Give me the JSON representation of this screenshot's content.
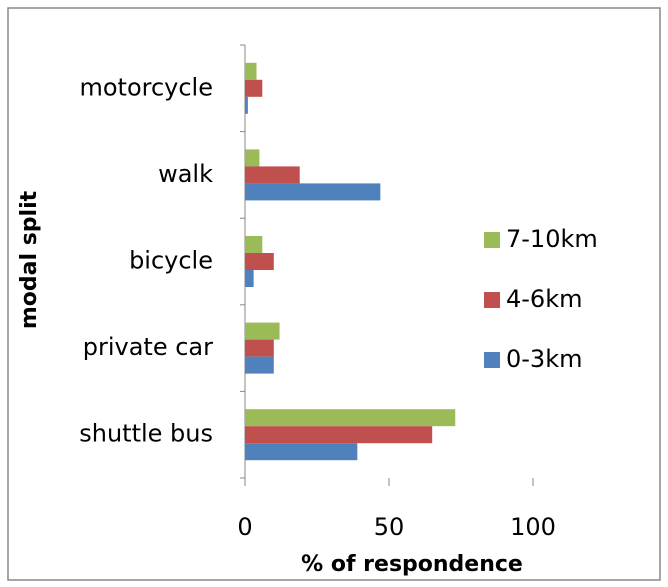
{
  "chart_data": {
    "type": "bar",
    "orientation": "horizontal",
    "x_label": "% of respondence",
    "y_label": "modal split",
    "categories": [
      "motorcycle",
      "walk",
      "bicycle",
      "private car",
      "shuttle bus"
    ],
    "series": [
      {
        "name": "7-10km",
        "color": "#9bbb59",
        "values": [
          4,
          5,
          6,
          12,
          73
        ]
      },
      {
        "name": "4-6km",
        "color": "#c0504d",
        "values": [
          6,
          19,
          10,
          10,
          65
        ]
      },
      {
        "name": "0-3km",
        "color": "#4f81bd",
        "values": [
          1,
          47,
          3,
          10,
          39
        ]
      }
    ],
    "xlim": [
      0,
      100
    ],
    "xticks": [
      0,
      50,
      100
    ],
    "grid": false,
    "legend": "right"
  }
}
